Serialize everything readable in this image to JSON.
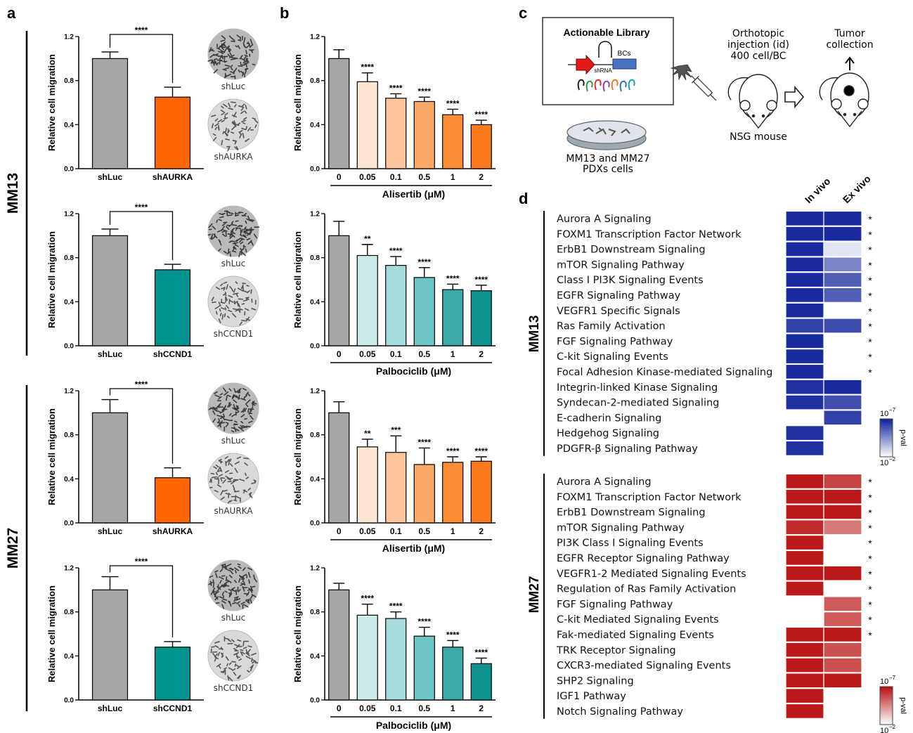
{
  "panels": {
    "a": "a",
    "b": "b",
    "c": "c",
    "d": "d"
  },
  "model_labels": {
    "mm13": "MM13",
    "mm27": "MM27"
  },
  "chart_data": [
    {
      "id": "a1",
      "type": "bar",
      "ylabel": "Relative cell migration",
      "ylim": [
        0,
        1.2
      ],
      "yticks": [
        "0.0",
        "0.4",
        "0.8",
        "1.2"
      ],
      "categories": [
        "shLuc",
        "shAURKA"
      ],
      "values": [
        1.0,
        0.65
      ],
      "errors": [
        0.06,
        0.09
      ],
      "colors": [
        "#a6a6a6",
        "#ff6600"
      ],
      "bracket_label": "****"
    },
    {
      "id": "a2",
      "type": "bar",
      "ylabel": "Relative cell migration",
      "ylim": [
        0,
        1.2
      ],
      "yticks": [
        "0.0",
        "0.4",
        "0.8",
        "1.2"
      ],
      "categories": [
        "shLuc",
        "shCCND1"
      ],
      "values": [
        1.0,
        0.69
      ],
      "errors": [
        0.06,
        0.05
      ],
      "colors": [
        "#a6a6a6",
        "#009390"
      ],
      "bracket_label": "****"
    },
    {
      "id": "a3",
      "type": "bar",
      "ylabel": "Relative cell migration",
      "ylim": [
        0,
        1.2
      ],
      "yticks": [
        "0.0",
        "0.4",
        "0.8",
        "1.2"
      ],
      "categories": [
        "shLuc",
        "shAURKA"
      ],
      "values": [
        1.0,
        0.41
      ],
      "errors": [
        0.12,
        0.09
      ],
      "colors": [
        "#a6a6a6",
        "#ff6600"
      ],
      "bracket_label": "****"
    },
    {
      "id": "a4",
      "type": "bar",
      "ylabel": "Relative cell migration",
      "ylim": [
        0,
        1.2
      ],
      "yticks": [
        "0.0",
        "0.4",
        "0.8",
        "1.2"
      ],
      "categories": [
        "shLuc",
        "shCCND1"
      ],
      "values": [
        1.0,
        0.48
      ],
      "errors": [
        0.12,
        0.05
      ],
      "colors": [
        "#a6a6a6",
        "#009390"
      ],
      "bracket_label": "****"
    },
    {
      "id": "b1",
      "type": "bar",
      "ylabel": "Relative cell migration",
      "xlabel": "Alisertib (μM)",
      "ylim": [
        0,
        1.2
      ],
      "yticks": [
        "0.0",
        "0.4",
        "0.8",
        "1.2"
      ],
      "categories": [
        "0",
        "0.05",
        "0.1",
        "0.5",
        "1",
        "2"
      ],
      "values": [
        1.0,
        0.79,
        0.64,
        0.61,
        0.49,
        0.4
      ],
      "errors": [
        0.08,
        0.08,
        0.04,
        0.04,
        0.05,
        0.04
      ],
      "colors": [
        "#a6a6a6",
        "#fde6d2",
        "#fdc59c",
        "#fca867",
        "#fb8d35",
        "#fb7a1c"
      ],
      "significance": [
        "",
        "****",
        "****",
        "****",
        "****",
        "****"
      ]
    },
    {
      "id": "b2",
      "type": "bar",
      "ylabel": "Relative cell migration",
      "xlabel": "Palbociclib (μM)",
      "ylim": [
        0,
        1.2
      ],
      "yticks": [
        "0.0",
        "0.4",
        "0.8",
        "1.2"
      ],
      "categories": [
        "0",
        "0.05",
        "0.1",
        "0.5",
        "1",
        "2"
      ],
      "values": [
        1.0,
        0.82,
        0.73,
        0.62,
        0.51,
        0.5
      ],
      "errors": [
        0.13,
        0.1,
        0.08,
        0.09,
        0.05,
        0.05
      ],
      "colors": [
        "#a6a6a6",
        "#cdebeb",
        "#a8dcdc",
        "#6fc5c4",
        "#3aa9a7",
        "#0e938f"
      ],
      "significance": [
        "",
        "**",
        "****",
        "****",
        "****",
        "****"
      ]
    },
    {
      "id": "b3",
      "type": "bar",
      "ylabel": "Relative cell migration",
      "xlabel": "Alisertib (μM)",
      "ylim": [
        0,
        1.2
      ],
      "yticks": [
        "0.0",
        "0.4",
        "0.8",
        "1.2"
      ],
      "categories": [
        "0",
        "0.05",
        "0.1",
        "0.5",
        "1",
        "2"
      ],
      "values": [
        1.0,
        0.69,
        0.64,
        0.53,
        0.55,
        0.56
      ],
      "errors": [
        0.1,
        0.07,
        0.15,
        0.15,
        0.05,
        0.04
      ],
      "colors": [
        "#a6a6a6",
        "#fde6d2",
        "#fdc59c",
        "#fca867",
        "#fb8d35",
        "#fb7a1c"
      ],
      "significance": [
        "",
        "**",
        "***",
        "****",
        "****",
        "****"
      ]
    },
    {
      "id": "b4",
      "type": "bar",
      "ylabel": "Relative cell migration",
      "xlabel": "Palbociclib (μM)",
      "ylim": [
        0,
        1.2
      ],
      "yticks": [
        "0.0",
        "0.4",
        "0.8",
        "1.2"
      ],
      "categories": [
        "0",
        "0.05",
        "0.1",
        "0.5",
        "1",
        "2"
      ],
      "values": [
        1.0,
        0.77,
        0.74,
        0.58,
        0.48,
        0.33
      ],
      "errors": [
        0.06,
        0.1,
        0.06,
        0.08,
        0.06,
        0.05
      ],
      "colors": [
        "#a6a6a6",
        "#cdebeb",
        "#a8dcdc",
        "#6fc5c4",
        "#3aa9a7",
        "#0e938f"
      ],
      "significance": [
        "",
        "****",
        "****",
        "****",
        "****",
        "****"
      ]
    },
    {
      "id": "d1",
      "type": "heatmap",
      "group": "MM13",
      "columns": [
        "In vivo",
        "Ex vivo"
      ],
      "colorbar": {
        "top": "10",
        "top_exp": "−7",
        "bottom": "10",
        "bottom_exp": "−2",
        "label": "p-val"
      },
      "base_color": "#0c1f99",
      "rows": [
        {
          "label": "Aurora A Signaling",
          "values": [
            0.95,
            0.95
          ],
          "star": "*"
        },
        {
          "label": "FOXM1 Transcription Factor Network",
          "values": [
            0.95,
            0.95
          ],
          "star": "*"
        },
        {
          "label": "ErbB1 Downstream Signaling",
          "values": [
            0.95,
            0.12
          ],
          "star": "*"
        },
        {
          "label": "mTOR Signaling Pathway",
          "values": [
            0.95,
            0.55
          ],
          "star": "*"
        },
        {
          "label": "Class I PI3K Signaling Events",
          "values": [
            0.95,
            0.72
          ],
          "star": "*"
        },
        {
          "label": "EGFR Signaling Pathway",
          "values": [
            0.95,
            0.72
          ],
          "star": "*"
        },
        {
          "label": "VEGFR1 Specific Signals",
          "values": [
            0.95,
            null
          ],
          "star": "*"
        },
        {
          "label": "Ras Family Activation",
          "values": [
            0.85,
            0.8
          ],
          "star": "*"
        },
        {
          "label": "FGF Signaling Pathway",
          "values": [
            0.95,
            null
          ],
          "star": "*"
        },
        {
          "label": "C-kit Signaling Events",
          "values": [
            0.95,
            null
          ],
          "star": "*"
        },
        {
          "label": "Focal Adhesion Kinase-mediated Signaling",
          "values": [
            0.95,
            null
          ],
          "star": "*"
        },
        {
          "label": "Integrin-linked Kinase Signaling",
          "values": [
            0.92,
            0.95
          ],
          "star": ""
        },
        {
          "label": "Syndecan-2-mediated Signaling",
          "values": [
            0.92,
            0.78
          ],
          "star": ""
        },
        {
          "label": "E-cadherin Signaling",
          "values": [
            null,
            0.85
          ],
          "star": ""
        },
        {
          "label": "Hedgehog Signaling",
          "values": [
            0.92,
            null
          ],
          "star": ""
        },
        {
          "label": "PDGFR-β Signaling Pathway",
          "values": [
            0.92,
            null
          ],
          "star": ""
        }
      ]
    },
    {
      "id": "d2",
      "type": "heatmap",
      "group": "MM27",
      "columns": [
        "In vivo",
        "Ex vivo"
      ],
      "colorbar": {
        "top": "10",
        "top_exp": "−7",
        "bottom": "10",
        "bottom_exp": "−2",
        "label": "p-val"
      },
      "base_color": "#b70d0d",
      "rows": [
        {
          "label": "Aurora A Signaling",
          "values": [
            0.95,
            0.78
          ],
          "star": "*"
        },
        {
          "label": "FOXM1 Transcription Factor Network",
          "values": [
            0.95,
            0.95
          ],
          "star": "*"
        },
        {
          "label": "ErbB1 Downstream Signaling",
          "values": [
            0.95,
            0.95
          ],
          "star": "*"
        },
        {
          "label": "mTOR Signaling Pathway",
          "values": [
            0.88,
            0.55
          ],
          "star": "*"
        },
        {
          "label": "PI3K Class I Signaling Events",
          "values": [
            0.95,
            null
          ],
          "star": "*"
        },
        {
          "label": "EGFR Receptor Signaling Pathway",
          "values": [
            0.95,
            null
          ],
          "star": "*"
        },
        {
          "label": "VEGFR1-2 Mediated Signaling Events",
          "values": [
            0.95,
            0.95
          ],
          "star": "*"
        },
        {
          "label": "Regulation of Ras Family Activation",
          "values": [
            0.95,
            null
          ],
          "star": "*"
        },
        {
          "label": "FGF Signaling Pathway",
          "values": [
            null,
            0.68
          ],
          "star": "*"
        },
        {
          "label": "C-kit Mediated Signaling Events",
          "values": [
            null,
            0.68
          ],
          "star": "*"
        },
        {
          "label": "Fak-mediated Signaling Events",
          "values": [
            0.95,
            0.95
          ],
          "star": "*"
        },
        {
          "label": "TRK Receptor Signaling",
          "values": [
            0.95,
            0.72
          ],
          "star": ""
        },
        {
          "label": "CXCR3-mediated Signaling Events",
          "values": [
            0.95,
            0.72
          ],
          "star": ""
        },
        {
          "label": "SHP2 Signaling",
          "values": [
            0.95,
            0.95
          ],
          "star": ""
        },
        {
          "label": "IGF1 Pathway",
          "values": [
            0.95,
            null
          ],
          "star": ""
        },
        {
          "label": "Notch Signaling Pathway",
          "values": [
            0.95,
            null
          ],
          "star": ""
        }
      ]
    }
  ],
  "colonies": {
    "a1": [
      "shLuc",
      "shAURKA"
    ],
    "a2": [
      "shLuc",
      "shCCND1"
    ],
    "a3": [
      "shLuc",
      "shAURKA"
    ],
    "a4": [
      "shLuc",
      "shCCND1"
    ]
  },
  "schematic": {
    "library_title": "Actionable Library",
    "shrna": "shRNA",
    "bcs": "BCs",
    "cells_caption_1": "MM13 and MM27",
    "cells_caption_2": "PDXs cells",
    "injection_1": "Orthotopic",
    "injection_2": "injection (id)",
    "injection_3": "400 cell/BC",
    "mouse_label": "NSG mouse",
    "collection_1": "Tumor",
    "collection_2": "collection"
  }
}
